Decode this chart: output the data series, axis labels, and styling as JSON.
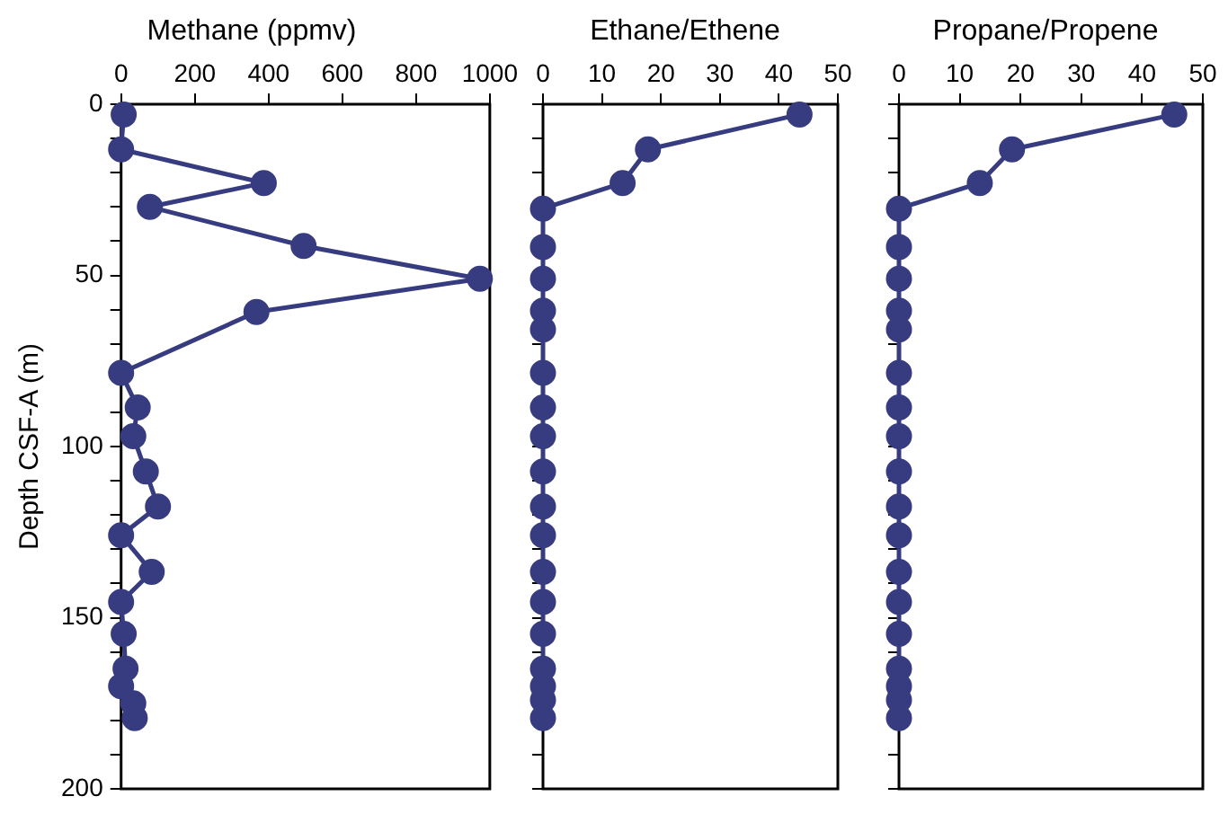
{
  "chart_data": [
    {
      "type": "line",
      "title": "Methane (ppmv)",
      "ylabel": "Depth CSF-A (m)",
      "marker": "circle",
      "grid": false,
      "legend": false,
      "xlim": [
        0,
        1000
      ],
      "xticks": [
        0,
        200,
        400,
        600,
        800,
        1000
      ],
      "ylim": [
        200,
        0
      ],
      "yticks": [
        0,
        {
          "value": 10,
          "label": null
        },
        {
          "value": 20,
          "label": null
        },
        {
          "value": 30,
          "label": null
        },
        {
          "value": 40,
          "label": null
        },
        50,
        {
          "value": 60,
          "label": null
        },
        {
          "value": 70,
          "label": null
        },
        {
          "value": 80,
          "label": null
        },
        {
          "value": 90,
          "label": null
        },
        100,
        {
          "value": 110,
          "label": null
        },
        {
          "value": 120,
          "label": null
        },
        {
          "value": 130,
          "label": null
        },
        {
          "value": 140,
          "label": null
        },
        150,
        {
          "value": 160,
          "label": null
        },
        {
          "value": 170,
          "label": null
        },
        {
          "value": 180,
          "label": null
        },
        {
          "value": 190,
          "label": null
        },
        200
      ],
      "series": [
        {
          "color": "#373c80",
          "x": [
            7,
            0,
            387,
            78,
            495,
            973,
            367,
            0,
            45,
            33,
            67,
            100,
            0,
            83,
            0,
            7,
            12,
            0,
            33,
            37
          ],
          "values": [
            3,
            13.2,
            23,
            30,
            41.4,
            51,
            60.7,
            78.5,
            88.6,
            97,
            107.3,
            117.5,
            125.9,
            136.6,
            145.4,
            154.7,
            164.9,
            170,
            175,
            179.3
          ]
        }
      ]
    },
    {
      "type": "line",
      "title": "Ethane/Ethene",
      "marker": "circle",
      "grid": false,
      "legend": false,
      "tick_labels": "x",
      "xlim": [
        0,
        50
      ],
      "xticks": [
        0,
        10,
        20,
        30,
        40,
        50
      ],
      "ylim": [
        200,
        0
      ],
      "yticks": [
        0,
        {
          "value": 10,
          "label": null
        },
        {
          "value": 20,
          "label": null
        },
        {
          "value": 30,
          "label": null
        },
        {
          "value": 40,
          "label": null
        },
        50,
        {
          "value": 60,
          "label": null
        },
        {
          "value": 70,
          "label": null
        },
        {
          "value": 80,
          "label": null
        },
        {
          "value": 90,
          "label": null
        },
        100,
        {
          "value": 110,
          "label": null
        },
        {
          "value": 120,
          "label": null
        },
        {
          "value": 130,
          "label": null
        },
        {
          "value": 140,
          "label": null
        },
        150,
        {
          "value": 160,
          "label": null
        },
        {
          "value": 170,
          "label": null
        },
        {
          "value": 180,
          "label": null
        },
        {
          "value": 190,
          "label": null
        },
        200
      ],
      "series": [
        {
          "color": "#373c80",
          "x": [
            43.5,
            17.8,
            13.5,
            0,
            0,
            0,
            0,
            0,
            0,
            0,
            0,
            0,
            0,
            0,
            0,
            0,
            0,
            0,
            0,
            0,
            0
          ],
          "values": [
            3,
            13.2,
            23,
            30.5,
            41.7,
            51,
            60.3,
            65.8,
            78.5,
            88.6,
            97,
            107.3,
            117.5,
            125.9,
            136.6,
            145.4,
            154.7,
            164.9,
            170,
            174,
            179.3
          ]
        }
      ]
    },
    {
      "type": "line",
      "title": "Propane/Propene",
      "marker": "circle",
      "grid": false,
      "legend": false,
      "tick_labels": "x",
      "xlim": [
        0,
        50
      ],
      "xticks": [
        0,
        10,
        20,
        30,
        40,
        50
      ],
      "ylim": [
        200,
        0
      ],
      "yticks": [
        0,
        {
          "value": 10,
          "label": null
        },
        {
          "value": 20,
          "label": null
        },
        {
          "value": 30,
          "label": null
        },
        {
          "value": 40,
          "label": null
        },
        50,
        {
          "value": 60,
          "label": null
        },
        {
          "value": 70,
          "label": null
        },
        {
          "value": 80,
          "label": null
        },
        {
          "value": 90,
          "label": null
        },
        100,
        {
          "value": 110,
          "label": null
        },
        {
          "value": 120,
          "label": null
        },
        {
          "value": 130,
          "label": null
        },
        {
          "value": 140,
          "label": null
        },
        150,
        {
          "value": 160,
          "label": null
        },
        {
          "value": 170,
          "label": null
        },
        {
          "value": 180,
          "label": null
        },
        {
          "value": 190,
          "label": null
        },
        200
      ],
      "series": [
        {
          "color": "#373c80",
          "x": [
            45.3,
            18.6,
            13.3,
            0,
            0,
            0,
            0,
            0,
            0,
            0,
            0,
            0,
            0,
            0,
            0,
            0,
            0,
            0,
            0,
            0,
            0
          ],
          "values": [
            3,
            13.2,
            23,
            30.5,
            41.7,
            51,
            60.3,
            65.8,
            78.5,
            88.6,
            97,
            107.3,
            117.5,
            125.9,
            136.6,
            145.4,
            154.7,
            164.9,
            170,
            174,
            179.3
          ]
        }
      ]
    }
  ]
}
